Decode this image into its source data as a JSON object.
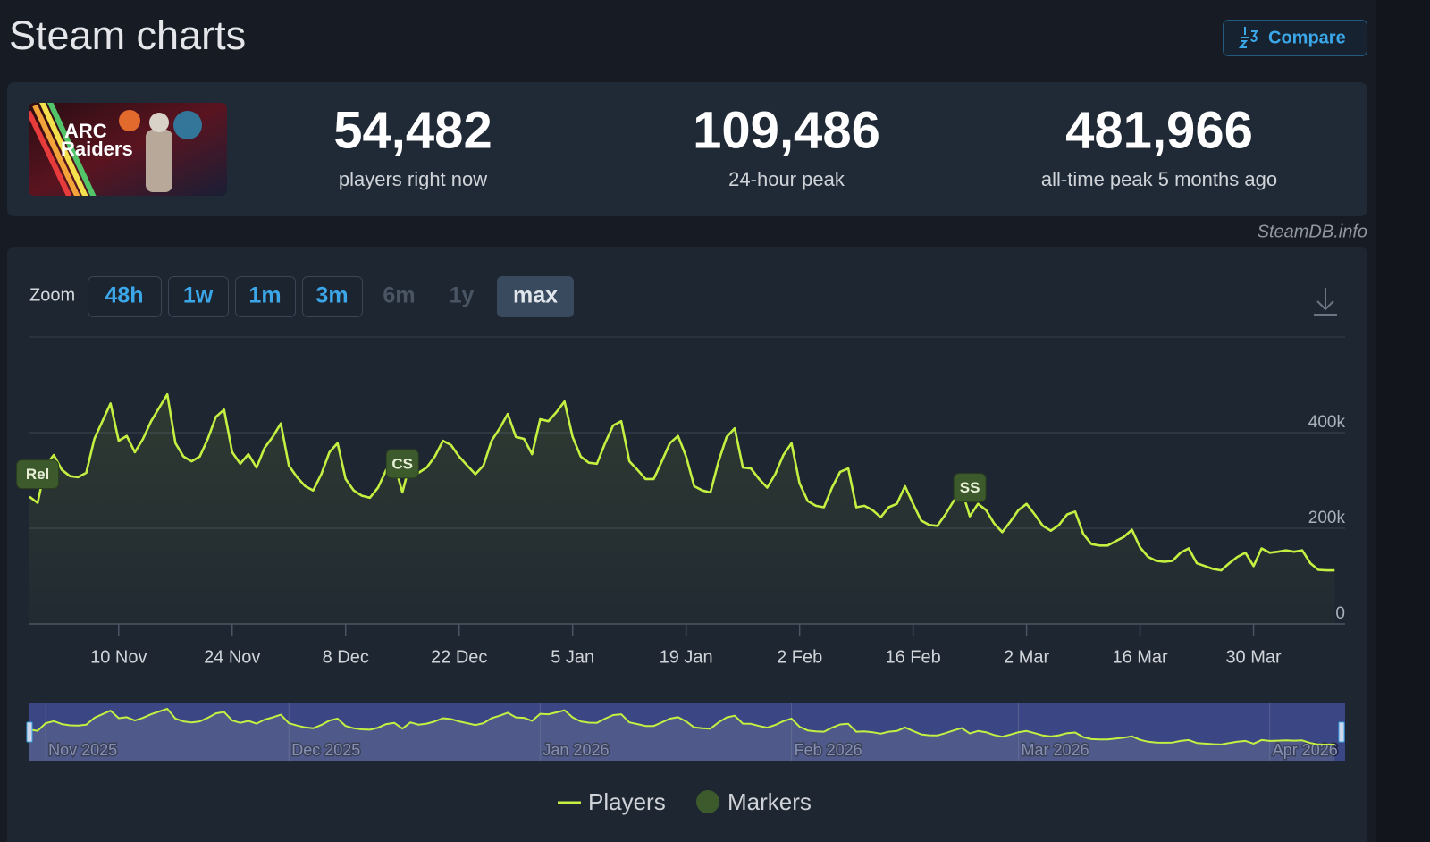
{
  "header": {
    "title": "Steam charts",
    "compare": "Compare"
  },
  "game_logo": [
    "ARC",
    "Raiders"
  ],
  "stats": [
    {
      "value": "54,482",
      "label": "players right now"
    },
    {
      "value": "109,486",
      "label": "24-hour peak"
    },
    {
      "value": "481,966",
      "label": "all-time peak 5 months ago"
    }
  ],
  "credit": "SteamDB.info",
  "zoom": {
    "label": "Zoom",
    "buttons": [
      {
        "label": "48h",
        "state": "enabled"
      },
      {
        "label": "1w",
        "state": "enabled"
      },
      {
        "label": "1m",
        "state": "enabled"
      },
      {
        "label": "3m",
        "state": "enabled"
      },
      {
        "label": "6m",
        "state": "disabled"
      },
      {
        "label": "1y",
        "state": "disabled"
      },
      {
        "label": "max",
        "state": "active"
      }
    ]
  },
  "chart_data": {
    "type": "line",
    "x": [
      "30 Oct",
      "31 Oct",
      "1 Nov",
      "2 Nov",
      "3 Nov",
      "4 Nov",
      "5 Nov",
      "6 Nov",
      "7 Nov",
      "8 Nov",
      "9 Nov",
      "10 Nov",
      "11 Nov",
      "12 Nov",
      "13 Nov",
      "14 Nov",
      "15 Nov",
      "16 Nov",
      "17 Nov",
      "18 Nov",
      "19 Nov",
      "20 Nov",
      "21 Nov",
      "22 Nov",
      "23 Nov",
      "24 Nov",
      "25 Nov",
      "26 Nov",
      "27 Nov",
      "28 Nov",
      "29 Nov",
      "30 Nov",
      "1 Dec",
      "2 Dec",
      "3 Dec",
      "4 Dec",
      "5 Dec",
      "6 Dec",
      "7 Dec",
      "8 Dec",
      "9 Dec",
      "10 Dec",
      "11 Dec",
      "12 Dec",
      "13 Dec",
      "14 Dec",
      "15 Dec",
      "16 Dec",
      "17 Dec",
      "18 Dec",
      "19 Dec",
      "20 Dec",
      "21 Dec",
      "22 Dec",
      "23 Dec",
      "24 Dec",
      "25 Dec",
      "26 Dec",
      "27 Dec",
      "28 Dec",
      "29 Dec",
      "30 Dec",
      "31 Dec",
      "1 Jan",
      "2 Jan",
      "3 Jan",
      "4 Jan",
      "5 Jan",
      "6 Jan",
      "7 Jan",
      "8 Jan",
      "9 Jan",
      "10 Jan",
      "11 Jan",
      "12 Jan",
      "13 Jan",
      "14 Jan",
      "15 Jan",
      "16 Jan",
      "17 Jan",
      "18 Jan",
      "19 Jan",
      "20 Jan",
      "21 Jan",
      "22 Jan",
      "23 Jan",
      "24 Jan",
      "25 Jan",
      "26 Jan",
      "27 Jan",
      "28 Jan",
      "29 Jan",
      "30 Jan",
      "31 Jan",
      "1 Feb",
      "2 Feb",
      "3 Feb",
      "4 Feb",
      "5 Feb",
      "6 Feb",
      "7 Feb",
      "8 Feb",
      "9 Feb",
      "10 Feb",
      "11 Feb",
      "12 Feb",
      "13 Feb",
      "14 Feb",
      "15 Feb",
      "16 Feb",
      "17 Feb",
      "18 Feb",
      "19 Feb",
      "20 Feb",
      "21 Feb",
      "22 Feb",
      "23 Feb",
      "24 Feb",
      "25 Feb",
      "26 Feb",
      "27 Feb",
      "28 Feb",
      "1 Mar",
      "2 Mar",
      "3 Mar",
      "4 Mar",
      "5 Mar",
      "6 Mar",
      "7 Mar",
      "8 Mar",
      "9 Mar",
      "10 Mar",
      "11 Mar",
      "12 Mar",
      "13 Mar",
      "14 Mar",
      "15 Mar",
      "16 Mar",
      "17 Mar",
      "18 Mar",
      "19 Mar",
      "20 Mar",
      "21 Mar",
      "22 Mar",
      "23 Mar",
      "24 Mar",
      "25 Mar",
      "26 Mar",
      "27 Mar",
      "28 Mar",
      "29 Mar",
      "30 Mar",
      "31 Mar",
      "1 Apr",
      "2 Apr",
      "3 Apr",
      "4 Apr",
      "5 Apr",
      "6 Apr",
      "7 Apr",
      "8 Apr",
      "9 Apr"
    ],
    "series": [
      {
        "name": "Players",
        "color": "#c4f042",
        "values": [
          266000,
          253000,
          331000,
          353000,
          322000,
          309000,
          307000,
          316000,
          387000,
          424000,
          461000,
          383000,
          393000,
          359000,
          387000,
          424000,
          452000,
          480000,
          378000,
          350000,
          340000,
          350000,
          387000,
          433000,
          448000,
          359000,
          335000,
          355000,
          327000,
          368000,
          391000,
          419000,
          331000,
          307000,
          288000,
          279000,
          313000,
          359000,
          378000,
          303000,
          279000,
          268000,
          264000,
          285000,
          322000,
          335000,
          275000,
          340000,
          316000,
          327000,
          350000,
          383000,
          374000,
          350000,
          331000,
          313000,
          331000,
          383000,
          409000,
          439000,
          391000,
          387000,
          355000,
          428000,
          424000,
          443000,
          465000,
          391000,
          350000,
          337000,
          335000,
          378000,
          415000,
          424000,
          340000,
          322000,
          303000,
          303000,
          340000,
          378000,
          393000,
          350000,
          288000,
          279000,
          275000,
          340000,
          391000,
          409000,
          327000,
          325000,
          303000,
          285000,
          313000,
          353000,
          378000,
          294000,
          257000,
          247000,
          244000,
          285000,
          318000,
          325000,
          244000,
          247000,
          238000,
          223000,
          244000,
          251000,
          288000,
          251000,
          216000,
          207000,
          205000,
          229000,
          257000,
          281000,
          225000,
          251000,
          238000,
          210000,
          192000,
          214000,
          238000,
          251000,
          229000,
          205000,
          195000,
          207000,
          229000,
          235000,
          188000,
          167000,
          164000,
          164000,
          173000,
          182000,
          197000,
          160000,
          140000,
          132000,
          130000,
          132000,
          149000,
          158000,
          127000,
          121000,
          115000,
          112000,
          127000,
          140000,
          149000,
          121000,
          158000,
          149000,
          151000,
          154000,
          151000,
          154000,
          127000,
          113000,
          112000,
          112000
        ]
      }
    ],
    "ylim": [
      0,
      600000
    ],
    "yticks": [
      0,
      {
        "value": 200000,
        "label": "200k"
      },
      {
        "value": 400000,
        "label": "400k"
      }
    ],
    "xticks": [
      "10 Nov",
      "24 Nov",
      "8 Dec",
      "22 Dec",
      "5 Jan",
      "19 Jan",
      "2 Feb",
      "16 Feb",
      "2 Mar",
      "16 Mar",
      "30 Mar"
    ],
    "grid": true,
    "markers": [
      {
        "label": "Rel",
        "x": "31 Oct"
      },
      {
        "label": "CS",
        "x": "15 Dec"
      },
      {
        "label": "SS",
        "x": "23 Feb"
      }
    ],
    "marker_legend": "Markers",
    "marker_color": "#3d5a2c",
    "navigator": [
      {
        "label": "Nov 2025",
        "x": "1 Nov"
      },
      {
        "label": "Dec 2025",
        "x": "1 Dec"
      },
      {
        "label": "Jan 2026",
        "x": "1 Jan"
      },
      {
        "label": "Feb 2026",
        "x": "1 Feb"
      },
      {
        "label": "Mar 2026",
        "x": "1 Mar"
      },
      {
        "label": "Apr 2026",
        "x": "1 Apr"
      }
    ]
  }
}
